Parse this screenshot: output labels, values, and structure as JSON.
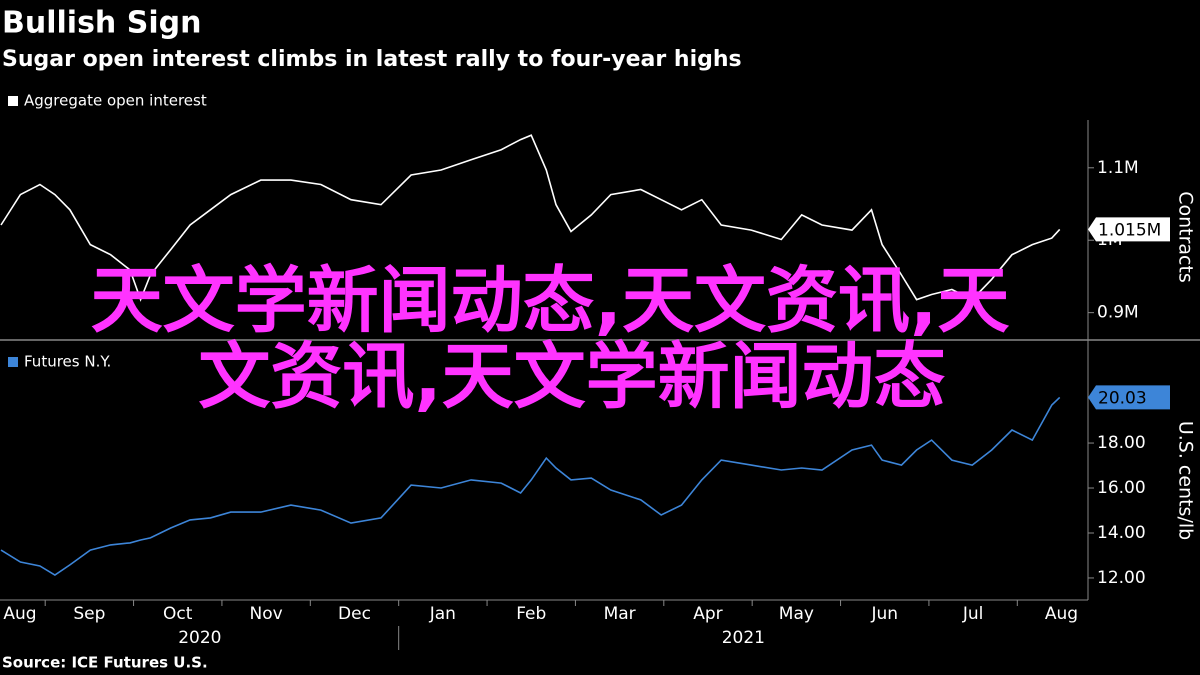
{
  "title": "Bullish Sign",
  "subtitle": "Sugar open interest climbs in latest rally to four-year highs",
  "source": "Source: ICE Futures U.S.",
  "overlay": [
    "天文学新闻动态,天文资讯,天",
    "文资讯,天文学新闻动态"
  ],
  "chart_data": [
    {
      "type": "line",
      "y_label": "Contracts",
      "x": [
        0,
        0.22,
        0.44,
        0.61,
        0.78,
        1.01,
        1.24,
        1.46,
        1.58,
        1.69,
        1.92,
        2.14,
        2.37,
        2.6,
        2.94,
        3.28,
        3.62,
        3.96,
        4.3,
        4.64,
        4.98,
        5.32,
        5.66,
        5.88,
        6.0,
        6.17,
        6.28,
        6.45,
        6.68,
        6.9,
        7.24,
        7.47,
        7.7,
        7.93,
        8.15,
        8.49,
        8.83,
        9.06,
        9.29,
        9.63,
        9.85,
        9.97,
        10.19,
        10.36,
        10.53,
        10.76,
        10.99,
        11.21,
        11.44,
        11.67,
        11.89,
        11.98
      ],
      "series": [
        {
          "name": "Aggregate open interest",
          "color": "#ffffff",
          "last_label": "1.015M",
          "values": [
            1021000,
            1063000,
            1077000,
            1063000,
            1042000,
            994000,
            980000,
            959000,
            918000,
            952000,
            987000,
            1021000,
            1042000,
            1063000,
            1083000,
            1083000,
            1077000,
            1056000,
            1049000,
            1090000,
            1097000,
            1111000,
            1125000,
            1139000,
            1145000,
            1097000,
            1049000,
            1012000,
            1035000,
            1063000,
            1070000,
            1056000,
            1042000,
            1056000,
            1021000,
            1014000,
            1001000,
            1035000,
            1021000,
            1014000,
            1042000,
            994000,
            952000,
            918000,
            925000,
            932000,
            918000,
            946000,
            980000,
            994000,
            1003000,
            1015000
          ]
        }
      ],
      "xlim": [
        0,
        12.3
      ],
      "ylim": [
        865000,
        1166000
      ],
      "yticks": [
        {
          "value": 900000,
          "label": "0.9M"
        },
        {
          "value": 1000000,
          "label": "1M"
        },
        {
          "value": 1100000,
          "label": "1.1M"
        }
      ]
    },
    {
      "type": "line",
      "y_label": "U.S. cents/lb",
      "x": [
        0,
        0.22,
        0.44,
        0.61,
        0.78,
        1.01,
        1.24,
        1.46,
        1.58,
        1.69,
        1.92,
        2.14,
        2.37,
        2.6,
        2.94,
        3.28,
        3.62,
        3.96,
        4.3,
        4.64,
        4.98,
        5.32,
        5.66,
        5.88,
        6.0,
        6.17,
        6.28,
        6.45,
        6.68,
        6.9,
        7.24,
        7.47,
        7.7,
        7.93,
        8.15,
        8.49,
        8.83,
        9.06,
        9.29,
        9.63,
        9.85,
        9.97,
        10.19,
        10.36,
        10.53,
        10.76,
        10.99,
        11.21,
        11.44,
        11.67,
        11.89,
        11.98
      ],
      "series": [
        {
          "name": "Futures N.Y.",
          "color": "#3d85d8",
          "values": [
            13.24,
            12.71,
            12.53,
            12.13,
            12.58,
            13.24,
            13.47,
            13.56,
            13.69,
            13.78,
            14.22,
            14.58,
            14.67,
            14.93,
            14.93,
            15.24,
            15.02,
            14.44,
            14.67,
            16.13,
            16.0,
            16.36,
            16.22,
            15.78,
            16.36,
            17.33,
            16.89,
            16.36,
            16.44,
            15.91,
            15.47,
            14.8,
            15.24,
            16.36,
            17.24,
            17.02,
            16.8,
            16.89,
            16.8,
            17.69,
            17.91,
            17.24,
            17.02,
            17.69,
            18.13,
            17.24,
            17.02,
            17.69,
            18.58,
            18.13,
            19.69,
            20.03
          ]
        }
      ],
      "xlim": [
        0,
        12.3
      ],
      "ylim": [
        11.02,
        22.36
      ],
      "yticks": [
        {
          "value": 12,
          "label": "12.00"
        },
        {
          "value": 14,
          "label": "14.00"
        },
        {
          "value": 16,
          "label": "16.00"
        },
        {
          "value": 18,
          "label": "18.00"
        },
        {
          "value": 20,
          "label": "20.00"
        }
      ],
      "xticks": [
        {
          "value": 0,
          "label": "Aug"
        },
        {
          "value": 1,
          "label": "Sep"
        },
        {
          "value": 2,
          "label": "Oct"
        },
        {
          "value": 3,
          "label": "Nov"
        },
        {
          "value": 4,
          "label": "Dec"
        },
        {
          "value": 5,
          "label": "Jan"
        },
        {
          "value": 6,
          "label": "Feb"
        },
        {
          "value": 7,
          "label": "Mar"
        },
        {
          "value": 8,
          "label": "Apr"
        },
        {
          "value": 9,
          "label": "May"
        },
        {
          "value": 10,
          "label": "Jun"
        },
        {
          "value": 11,
          "label": "Jul"
        },
        {
          "value": 12,
          "label": "Aug"
        }
      ],
      "years": [
        "2020",
        "2021"
      ]
    }
  ]
}
